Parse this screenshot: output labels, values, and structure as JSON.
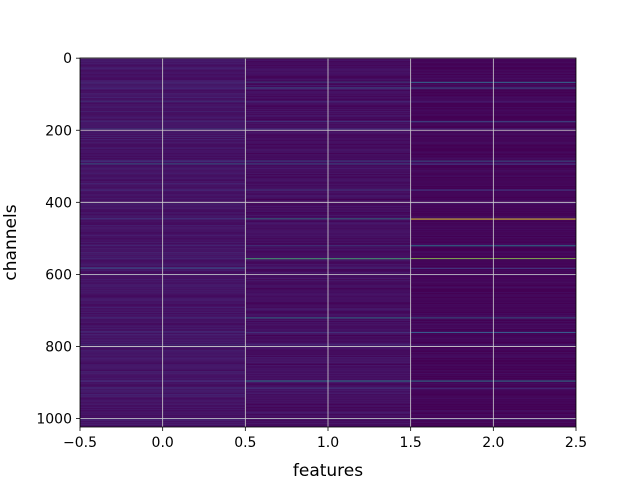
{
  "chart_data": {
    "type": "heatmap",
    "title": "",
    "xlabel": "features",
    "ylabel": "channels",
    "xlim": [
      -0.5,
      2.5
    ],
    "ylim": [
      1023.5,
      -0.5
    ],
    "y_inverted": true,
    "grid": true,
    "colormap": "viridis",
    "x_ticks": [
      -0.5,
      0.0,
      0.5,
      1.0,
      1.5,
      2.0,
      2.5
    ],
    "x_tick_labels": [
      "−0.5",
      "0.0",
      "0.5",
      "1.0",
      "1.5",
      "2.0",
      "2.5"
    ],
    "y_ticks": [
      0,
      200,
      400,
      600,
      800,
      1000
    ],
    "y_tick_labels": [
      "0",
      "200",
      "400",
      "600",
      "800",
      "1000"
    ],
    "n_rows": 1024,
    "columns": [
      0,
      1,
      2
    ],
    "column_base_values": [
      0.12,
      0.09,
      0.05
    ],
    "highlight_rows": [
      {
        "channel": 66,
        "values": [
          0.22,
          0.45,
          0.4
        ]
      },
      {
        "channel": 82,
        "values": [
          0.18,
          0.4,
          0.35
        ]
      },
      {
        "channel": 120,
        "values": [
          0.3,
          0.2,
          0.15
        ]
      },
      {
        "channel": 175,
        "values": [
          0.2,
          0.25,
          0.35
        ]
      },
      {
        "channel": 196,
        "values": [
          0.35,
          0.22,
          0.18
        ]
      },
      {
        "channel": 285,
        "values": [
          0.3,
          0.4,
          0.45
        ]
      },
      {
        "channel": 293,
        "values": [
          0.55,
          0.45,
          0.2
        ]
      },
      {
        "channel": 365,
        "values": [
          0.2,
          0.3,
          0.25
        ]
      },
      {
        "channel": 400,
        "values": [
          0.35,
          0.18,
          0.15
        ]
      },
      {
        "channel": 445,
        "values": [
          0.25,
          0.75,
          1.0
        ]
      },
      {
        "channel": 520,
        "values": [
          0.2,
          0.35,
          0.55
        ]
      },
      {
        "channel": 555,
        "values": [
          0.2,
          0.8,
          0.9
        ]
      },
      {
        "channel": 582,
        "values": [
          0.45,
          0.25,
          0.2
        ]
      },
      {
        "channel": 600,
        "values": [
          0.3,
          0.2,
          0.2
        ]
      },
      {
        "channel": 720,
        "values": [
          0.25,
          0.65,
          0.5
        ]
      },
      {
        "channel": 760,
        "values": [
          0.2,
          0.25,
          0.35
        ]
      },
      {
        "channel": 795,
        "values": [
          0.35,
          0.2,
          0.18
        ]
      },
      {
        "channel": 895,
        "values": [
          0.2,
          0.6,
          0.55
        ]
      },
      {
        "channel": 915,
        "values": [
          0.25,
          0.3,
          0.2
        ]
      },
      {
        "channel": 1000,
        "values": [
          0.3,
          0.25,
          0.2
        ]
      }
    ]
  }
}
